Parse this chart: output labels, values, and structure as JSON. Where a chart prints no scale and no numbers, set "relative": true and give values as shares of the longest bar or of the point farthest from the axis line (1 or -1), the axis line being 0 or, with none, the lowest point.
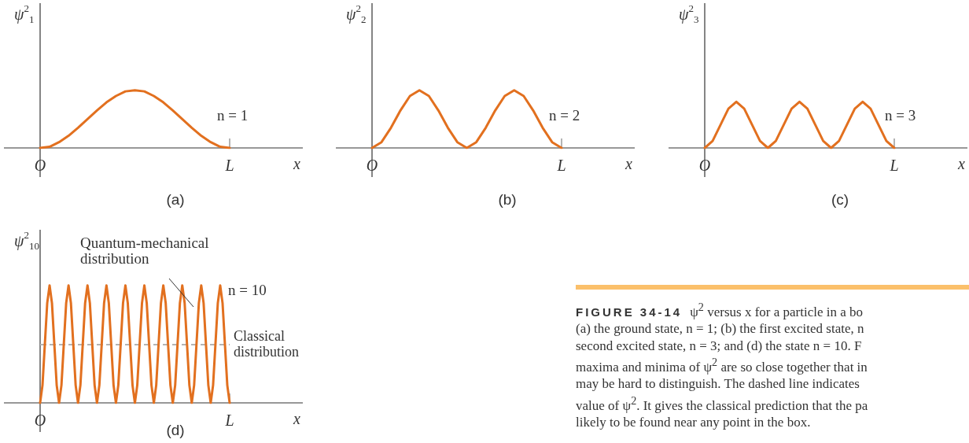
{
  "chart_data": [
    {
      "type": "line",
      "title": "(a)",
      "ylabel": "ψ$^{2}$$_{1}$",
      "xlabel": "x",
      "relative": true,
      "annotations": [
        "n = 1"
      ],
      "categories": [
        "O",
        null,
        null,
        null,
        null,
        null,
        null,
        null,
        null,
        null,
        null,
        null,
        null,
        null,
        null,
        null,
        null,
        null,
        null,
        null,
        "L"
      ],
      "series": [
        {
          "color": "#e2701f",
          "values": [
            0,
            0.02,
            0.1,
            0.21,
            0.35,
            0.5,
            0.65,
            0.79,
            0.9,
            0.98,
            1,
            0.98,
            0.9,
            0.79,
            0.65,
            0.5,
            0.35,
            0.21,
            0.1,
            0.02,
            0
          ]
        }
      ]
    },
    {
      "type": "line",
      "title": "(b)",
      "ylabel": "ψ$^{2}$$_{2}$",
      "xlabel": "x",
      "relative": true,
      "annotations": [
        "n = 2"
      ],
      "categories": [
        "O",
        null,
        null,
        null,
        null,
        null,
        null,
        null,
        null,
        null,
        null,
        null,
        null,
        null,
        null,
        null,
        null,
        null,
        null,
        null,
        "L"
      ],
      "series": [
        {
          "color": "#e2701f",
          "values": [
            0,
            0.1,
            0.35,
            0.65,
            0.9,
            1,
            0.9,
            0.65,
            0.35,
            0.1,
            0,
            0.1,
            0.35,
            0.65,
            0.9,
            1,
            0.9,
            0.65,
            0.35,
            0.1,
            0
          ]
        }
      ]
    },
    {
      "type": "line",
      "title": "(c)",
      "ylabel": "ψ$^{2}$$_{3}$",
      "xlabel": "x",
      "relative": true,
      "annotations": [
        "n = 3"
      ],
      "categories": [
        "O",
        null,
        null,
        null,
        null,
        null,
        null,
        null,
        null,
        null,
        null,
        null,
        null,
        null,
        null,
        null,
        null,
        null,
        null,
        null,
        null,
        null,
        null,
        null,
        "L"
      ],
      "series": [
        {
          "color": "#e2701f",
          "values": [
            0,
            0.15,
            0.5,
            0.85,
            1,
            0.85,
            0.5,
            0.15,
            0,
            0.15,
            0.5,
            0.85,
            1,
            0.85,
            0.5,
            0.15,
            0,
            0.15,
            0.5,
            0.85,
            1,
            0.85,
            0.5,
            0.15,
            0
          ]
        }
      ]
    },
    {
      "type": "line",
      "title": "(d)",
      "ylabel": "ψ$^{2}$$_{10}$",
      "xlabel": "x",
      "relative": true,
      "annotations": [
        "Quantum-mechanical distribution",
        "n = 10"
      ],
      "ref_lines": [
        {
          "axis": "y",
          "value": 0.5,
          "label": "Classical distribution",
          "color": "#b3b3b3",
          "line_style": "dashed"
        }
      ],
      "categories": [
        "O",
        null,
        null,
        null,
        null,
        null,
        null,
        null,
        null,
        null,
        null,
        null,
        null,
        null,
        null,
        null,
        null,
        null,
        null,
        null,
        null,
        null,
        null,
        null,
        null,
        null,
        null,
        null,
        null,
        null,
        null,
        null,
        null,
        null,
        null,
        null,
        null,
        null,
        null,
        null,
        null,
        null,
        null,
        null,
        null,
        null,
        null,
        null,
        null,
        null,
        null,
        null,
        null,
        null,
        null,
        null,
        null,
        null,
        null,
        null,
        null,
        null,
        null,
        null,
        null,
        null,
        null,
        null,
        null,
        null,
        null,
        null,
        null,
        null,
        null,
        null,
        null,
        null,
        null,
        null,
        "L"
      ],
      "series": [
        {
          "color": "#e2701f",
          "values": [
            0,
            0.15,
            0.5,
            0.85,
            1,
            0.85,
            0.5,
            0.15,
            0,
            0.15,
            0.5,
            0.85,
            1,
            0.85,
            0.5,
            0.15,
            0,
            0.15,
            0.5,
            0.85,
            1,
            0.85,
            0.5,
            0.15,
            0,
            0.15,
            0.5,
            0.85,
            1,
            0.85,
            0.5,
            0.15,
            0,
            0.15,
            0.5,
            0.85,
            1,
            0.85,
            0.5,
            0.15,
            0,
            0.15,
            0.5,
            0.85,
            1,
            0.85,
            0.5,
            0.15,
            0,
            0.15,
            0.5,
            0.85,
            1,
            0.85,
            0.5,
            0.15,
            0,
            0.15,
            0.5,
            0.85,
            1,
            0.85,
            0.5,
            0.15,
            0,
            0.15,
            0.5,
            0.85,
            1,
            0.85,
            0.5,
            0.15,
            0,
            0.15,
            0.5,
            0.85,
            1,
            0.85,
            0.5,
            0.15,
            0
          ]
        }
      ]
    },
    {
      "type": "other",
      "title": "FIGURE 34-14",
      "annotations": [
        "ψ$^{2}$ versus x for a particle in a bo",
        "(a) the ground state, n = 1; (b) the first excited state, n",
        "second excited state, n = 3; and (d) the state n = 10. F",
        "maxima and minima of ψ$^{2}$ are so close together that in",
        "may be hard to distinguish. The dashed line indicates",
        "value of ψ$^{2}$. It gives the classical prediction that the pa",
        "likely to be found near any point in the box."
      ]
    }
  ]
}
